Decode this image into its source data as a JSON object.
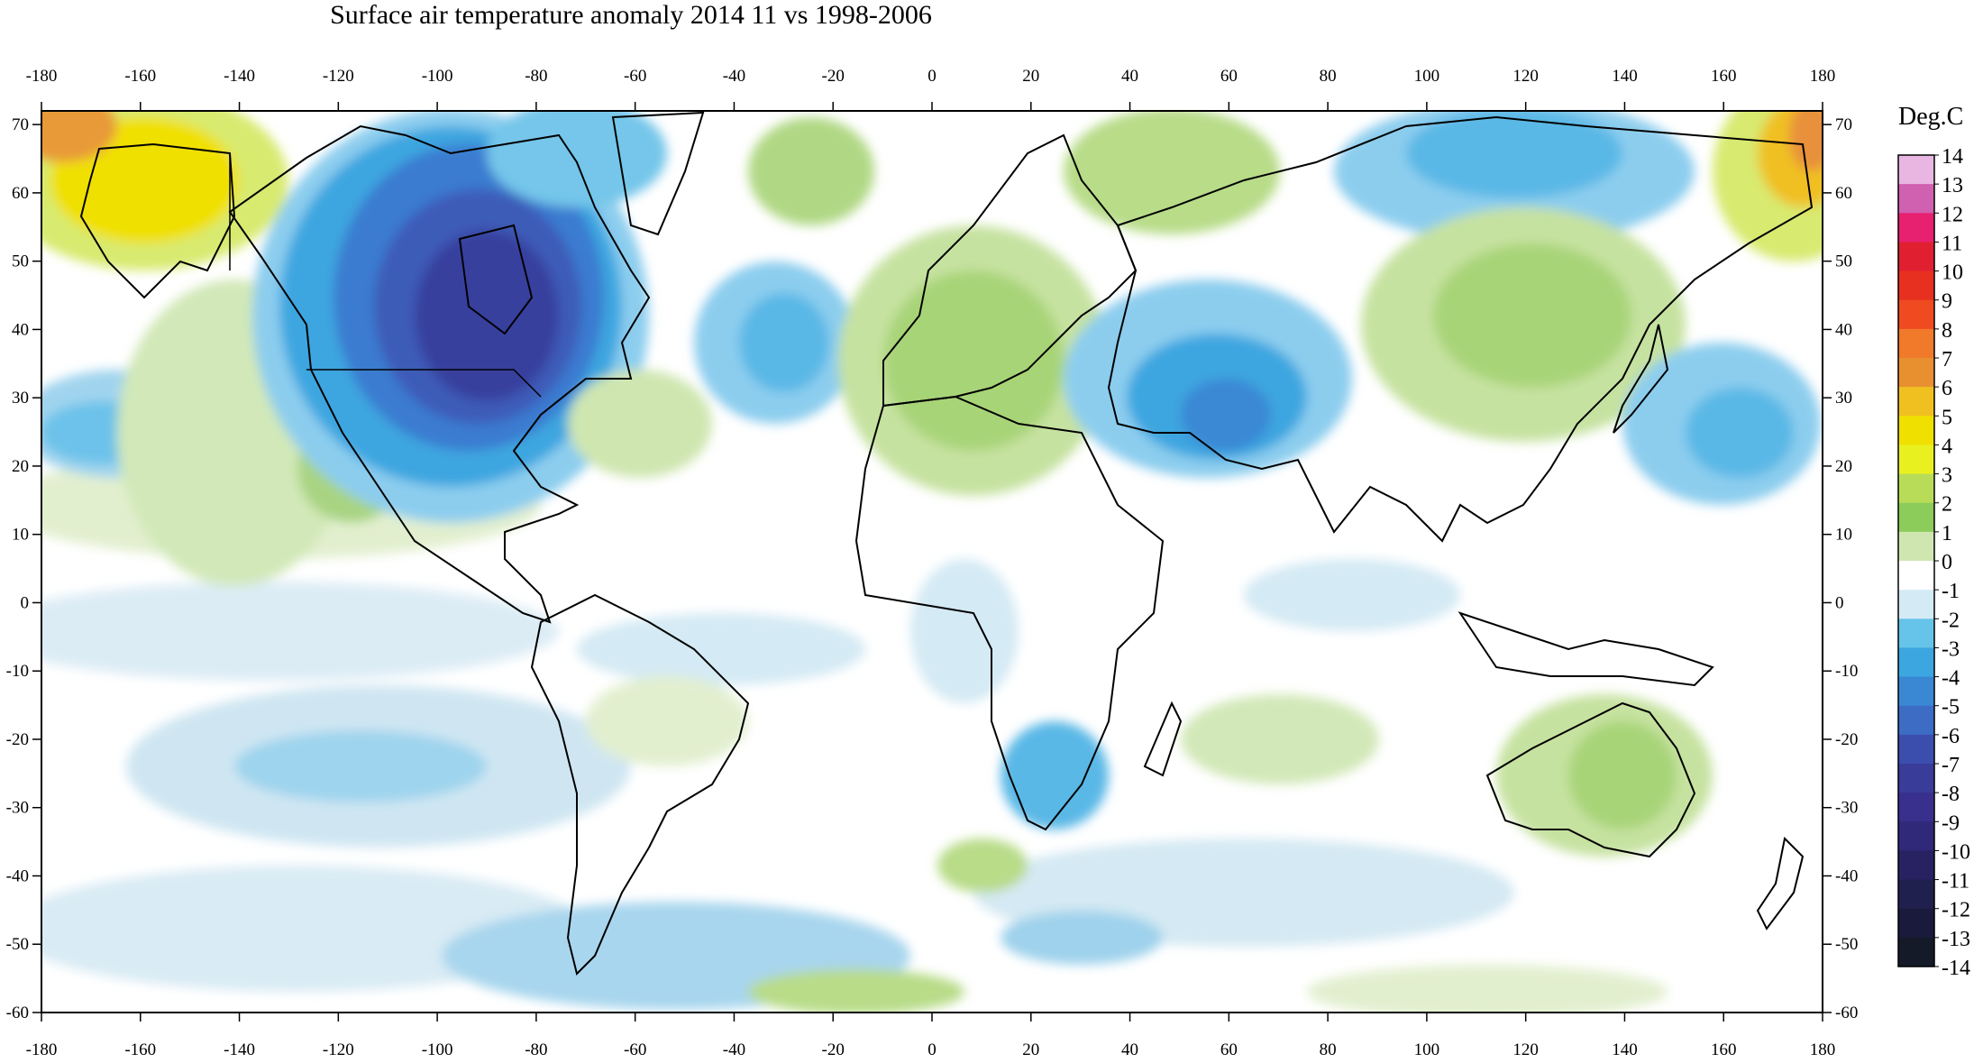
{
  "title": "Surface air temperature anomaly 2014 11 vs 1998-2006",
  "axes": {
    "x_ticks": [
      -180,
      -160,
      -140,
      -120,
      -100,
      -80,
      -60,
      -40,
      -20,
      0,
      20,
      40,
      60,
      80,
      100,
      120,
      140,
      160,
      180
    ],
    "y_ticks": [
      70,
      60,
      50,
      40,
      30,
      20,
      10,
      0,
      -10,
      -20,
      -30,
      -40,
      -50,
      -60
    ],
    "x_range": [
      -180,
      180
    ],
    "y_range": [
      -60,
      72
    ]
  },
  "legend": {
    "title": "Deg.C",
    "levels": [
      14,
      13,
      12,
      11,
      10,
      9,
      8,
      7,
      6,
      5,
      4,
      3,
      2,
      1,
      0,
      -1,
      -2,
      -3,
      -4,
      -5,
      -6,
      -7,
      -8,
      -9,
      -10,
      -11,
      -12,
      -13,
      -14
    ],
    "colors": [
      "#e8b6e0",
      "#d060b0",
      "#e82070",
      "#e02030",
      "#e83020",
      "#f04a20",
      "#f07a2a",
      "#e89030",
      "#f0c020",
      "#f0e000",
      "#e8f020",
      "#b8dc58",
      "#8ccc5a",
      "#cfe6b0",
      "#ffffff",
      "#d4eaf4",
      "#66c4ea",
      "#3ca6e0",
      "#3a88d4",
      "#3c6cc4",
      "#3b4eae",
      "#3a3c9a",
      "#38308c",
      "#302878",
      "#282262",
      "#20204e",
      "#1a1a3c",
      "#141a28",
      "#0f1418"
    ]
  },
  "anomaly_regions": [
    {
      "name": "canada-cold",
      "lon": -90,
      "lat": 45,
      "value": -6
    },
    {
      "name": "alaska-warm",
      "lon": -160,
      "lat": 60,
      "value": 4
    },
    {
      "name": "chukotka-warm",
      "lon": 175,
      "lat": 60,
      "value": 5
    },
    {
      "name": "central-asia-cold",
      "lon": 60,
      "lat": 30,
      "value": -3
    },
    {
      "name": "europe-warm",
      "lon": 15,
      "lat": 40,
      "value": 2
    },
    {
      "name": "australia-warm",
      "lon": 140,
      "lat": -25,
      "value": 2
    },
    {
      "name": "southern-africa-cold",
      "lon": 25,
      "lat": -25,
      "value": -2
    },
    {
      "name": "north-atlantic-cold",
      "lon": -35,
      "lat": 38,
      "value": -2
    }
  ]
}
